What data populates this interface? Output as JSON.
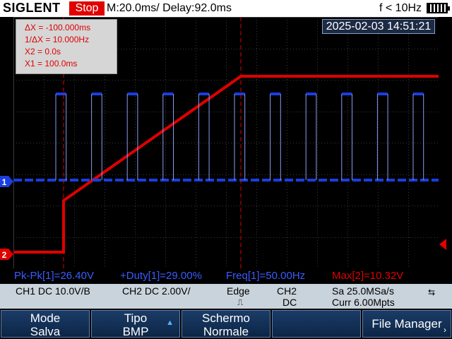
{
  "header": {
    "brand": "SIGLENT",
    "run_state": "Stop",
    "timebase": "M:20.0ms/ Delay:92.0ms",
    "trigger_freq": "f < 10Hz"
  },
  "datetime": "2025-02-03 14:51:21",
  "cursor_readout": {
    "dx": "ΔX = -100.000ms",
    "inv_dx": "1/ΔX = 10.000Hz",
    "x2": "X2 = 0.0s",
    "x1": "X1 = 100.0ms"
  },
  "channel_markers": {
    "ch1": "1",
    "ch2": "2"
  },
  "measurements": {
    "pkpk": "Pk-Pk[1]=26.40V",
    "duty": "+Duty[1]=29.00%",
    "freq": "Freq[1]=50.00Hz",
    "max": "Max[2]=10.32V"
  },
  "status": {
    "ch1": "CH1 DC 10.0V/B",
    "ch2": "CH2 DC 2.00V/",
    "trigger_type": "Edge",
    "trigger_source": "CH2",
    "trigger_coupling": "DC",
    "sample_rate": "Sa 25.0MSa/s",
    "memory_depth": "Curr 6.00Mpts"
  },
  "softkeys": {
    "mode_l1": "Mode",
    "mode_l2": "Salva",
    "type_l1": "Tipo",
    "type_l2": "BMP",
    "screen_l1": "Schermo",
    "screen_l2": "Normale",
    "file_manager": "File Manager"
  },
  "colors": {
    "ch1": "#1a3ee0",
    "ch2": "#e00000",
    "grid": "#3a3a3a",
    "cursor": "#e00000"
  }
}
